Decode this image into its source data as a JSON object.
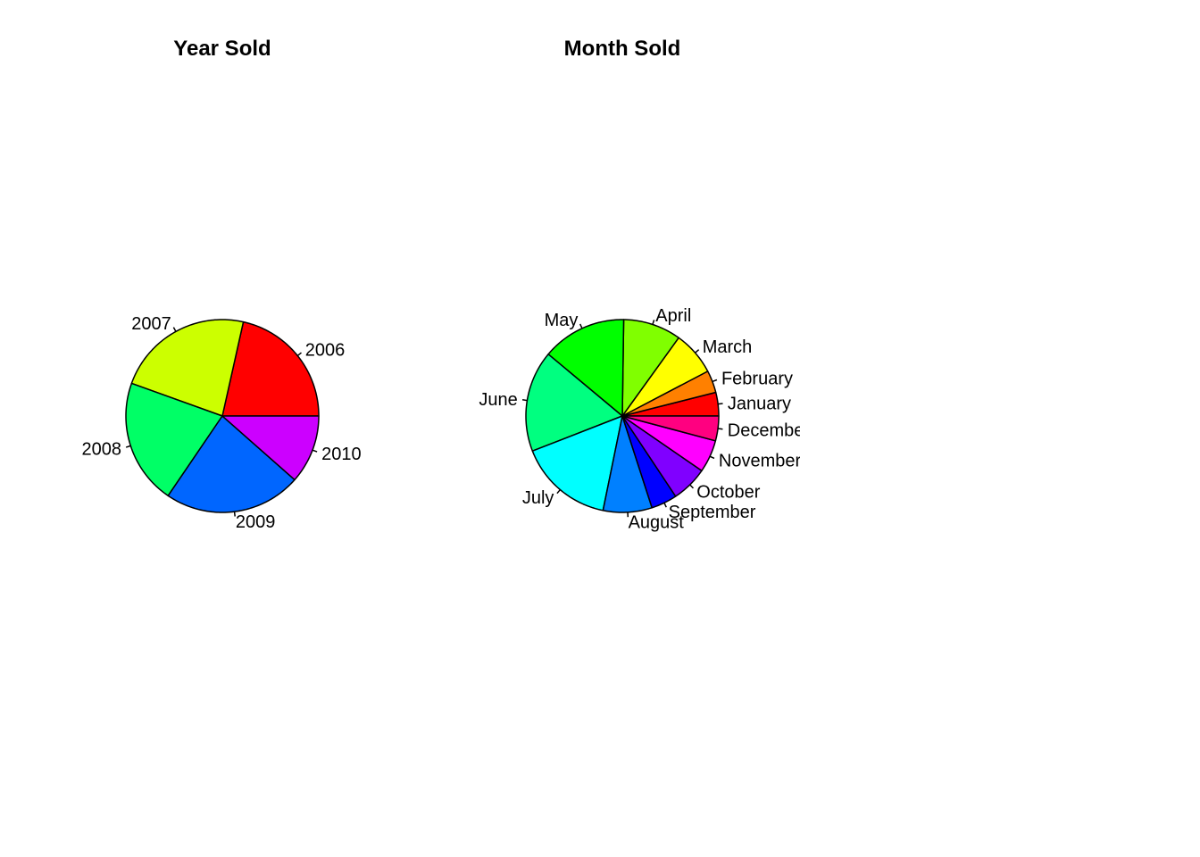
{
  "chart_data": [
    {
      "type": "pie",
      "title": "Year Sold",
      "start_angle_deg": 0,
      "direction": "counterclockwise",
      "slices": [
        {
          "label": "2006",
          "value": 21.5,
          "color": "#FF0000"
        },
        {
          "label": "2007",
          "value": 23.0,
          "color": "#CCFF00"
        },
        {
          "label": "2008",
          "value": 21.0,
          "color": "#00FF66"
        },
        {
          "label": "2009",
          "value": 23.0,
          "color": "#0066FF"
        },
        {
          "label": "2010",
          "value": 11.5,
          "color": "#CC00FF"
        }
      ]
    },
    {
      "type": "pie",
      "title": "Month Sold",
      "start_angle_deg": 0,
      "direction": "counterclockwise",
      "slices": [
        {
          "label": "January",
          "value": 3.9,
          "color": "#FF0000"
        },
        {
          "label": "February",
          "value": 3.7,
          "color": "#FF8000"
        },
        {
          "label": "March",
          "value": 7.3,
          "color": "#FFFF00"
        },
        {
          "label": "April",
          "value": 9.6,
          "color": "#80FF00"
        },
        {
          "label": "May",
          "value": 14.0,
          "color": "#00FF00"
        },
        {
          "label": "June",
          "value": 16.8,
          "color": "#00FF80"
        },
        {
          "label": "July",
          "value": 15.7,
          "color": "#00FFFF"
        },
        {
          "label": "August",
          "value": 8.1,
          "color": "#0080FF"
        },
        {
          "label": "September",
          "value": 4.3,
          "color": "#0000FF"
        },
        {
          "label": "October",
          "value": 6.0,
          "color": "#8000FF"
        },
        {
          "label": "November",
          "value": 5.4,
          "color": "#FF00FF"
        },
        {
          "label": "December",
          "value": 4.1,
          "color": "#FF0080"
        }
      ]
    }
  ]
}
